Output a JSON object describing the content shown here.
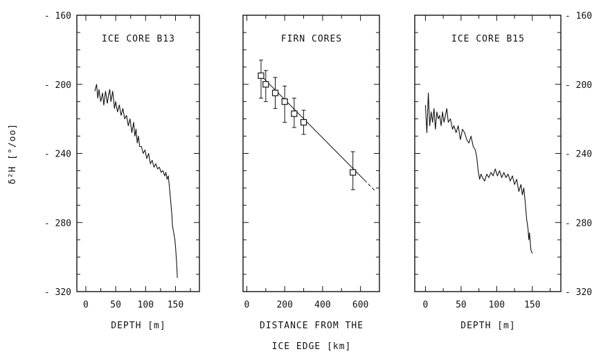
{
  "chart_data": [
    {
      "type": "line",
      "title": "ICE CORE B13",
      "xlabel": "DEPTH [m]",
      "ylabel": "δ²H [°/oo]",
      "xlim": [
        -15,
        190
      ],
      "ylim": [
        -320,
        -160
      ],
      "x_ticks": [
        0,
        50,
        100,
        150
      ],
      "y_ticks": [
        -320,
        -280,
        -240,
        -200,
        -160
      ],
      "series": [
        {
          "x": [
            15,
            18,
            20,
            22,
            25,
            28,
            30,
            33,
            36,
            38,
            40,
            42,
            45,
            48,
            50,
            53,
            56,
            59,
            62,
            65,
            68,
            71,
            74,
            77,
            80,
            82,
            84,
            86,
            88,
            90,
            93,
            96,
            99,
            102,
            105,
            108,
            111,
            114,
            117,
            120,
            123,
            126,
            129,
            132,
            134,
            136,
            138,
            140,
            142,
            144,
            145,
            147,
            149,
            150,
            152,
            153
          ],
          "y": [
            -204,
            -200,
            -208,
            -203,
            -210,
            -205,
            -212,
            -204,
            -211,
            -206,
            -203,
            -210,
            -204,
            -214,
            -210,
            -216,
            -212,
            -218,
            -214,
            -220,
            -218,
            -224,
            -220,
            -228,
            -222,
            -230,
            -226,
            -234,
            -230,
            -236,
            -236,
            -240,
            -238,
            -243,
            -240,
            -246,
            -244,
            -248,
            -246,
            -249,
            -248,
            -251,
            -250,
            -253,
            -251,
            -255,
            -253,
            -260,
            -268,
            -276,
            -282,
            -286,
            -290,
            -294,
            -304,
            -312
          ]
        }
      ]
    },
    {
      "type": "line",
      "title": "FIRN CORES",
      "xlabel": "DISTANCE FROM THE ICE EDGE [km]",
      "ylabel": "",
      "xlim": [
        -20,
        700
      ],
      "ylim": [
        -320,
        -160
      ],
      "x_ticks": [
        0,
        200,
        400,
        600
      ],
      "y_ticks": [
        -320,
        -280,
        -240,
        -200,
        -160
      ],
      "series": [
        {
          "x": [
            75,
            100,
            150,
            200,
            250,
            300,
            560
          ],
          "y": [
            -195,
            -200,
            -205,
            -210,
            -217,
            -222,
            -251
          ],
          "err_up": [
            9,
            8,
            9,
            9,
            9,
            7,
            12
          ],
          "err_down": [
            13,
            10,
            9,
            12,
            8,
            7,
            10
          ]
        }
      ],
      "fit_line": {
        "x": [
          75,
          680
        ],
        "y": [
          -195,
          -262
        ]
      }
    },
    {
      "type": "line",
      "title": "ICE CORE B15",
      "xlabel": "DEPTH [m]",
      "ylabel": "",
      "xlim": [
        -15,
        190
      ],
      "ylim": [
        -320,
        -160
      ],
      "x_ticks": [
        0,
        50,
        100,
        150
      ],
      "y_ticks": [
        -320,
        -280,
        -240,
        -200,
        -160
      ],
      "series": [
        {
          "x": [
            0,
            2,
            4,
            6,
            8,
            10,
            12,
            14,
            16,
            18,
            20,
            22,
            24,
            26,
            28,
            30,
            32,
            35,
            38,
            40,
            43,
            46,
            49,
            52,
            55,
            58,
            61,
            64,
            67,
            70,
            72,
            74,
            76,
            78,
            80,
            83,
            86,
            89,
            92,
            95,
            98,
            101,
            104,
            107,
            110,
            113,
            116,
            119,
            122,
            125,
            128,
            131,
            134,
            136,
            138,
            140,
            142,
            144,
            145,
            146,
            148,
            150
          ],
          "y": [
            -212,
            -228,
            -205,
            -224,
            -216,
            -222,
            -214,
            -226,
            -216,
            -220,
            -218,
            -224,
            -216,
            -222,
            -218,
            -214,
            -222,
            -220,
            -226,
            -224,
            -228,
            -224,
            -232,
            -226,
            -228,
            -232,
            -234,
            -230,
            -236,
            -238,
            -242,
            -250,
            -255,
            -252,
            -254,
            -256,
            -252,
            -254,
            -251,
            -253,
            -249,
            -253,
            -250,
            -254,
            -251,
            -254,
            -252,
            -256,
            -253,
            -258,
            -255,
            -262,
            -258,
            -264,
            -260,
            -268,
            -278,
            -284,
            -290,
            -286,
            -296,
            -298
          ]
        }
      ]
    }
  ]
}
